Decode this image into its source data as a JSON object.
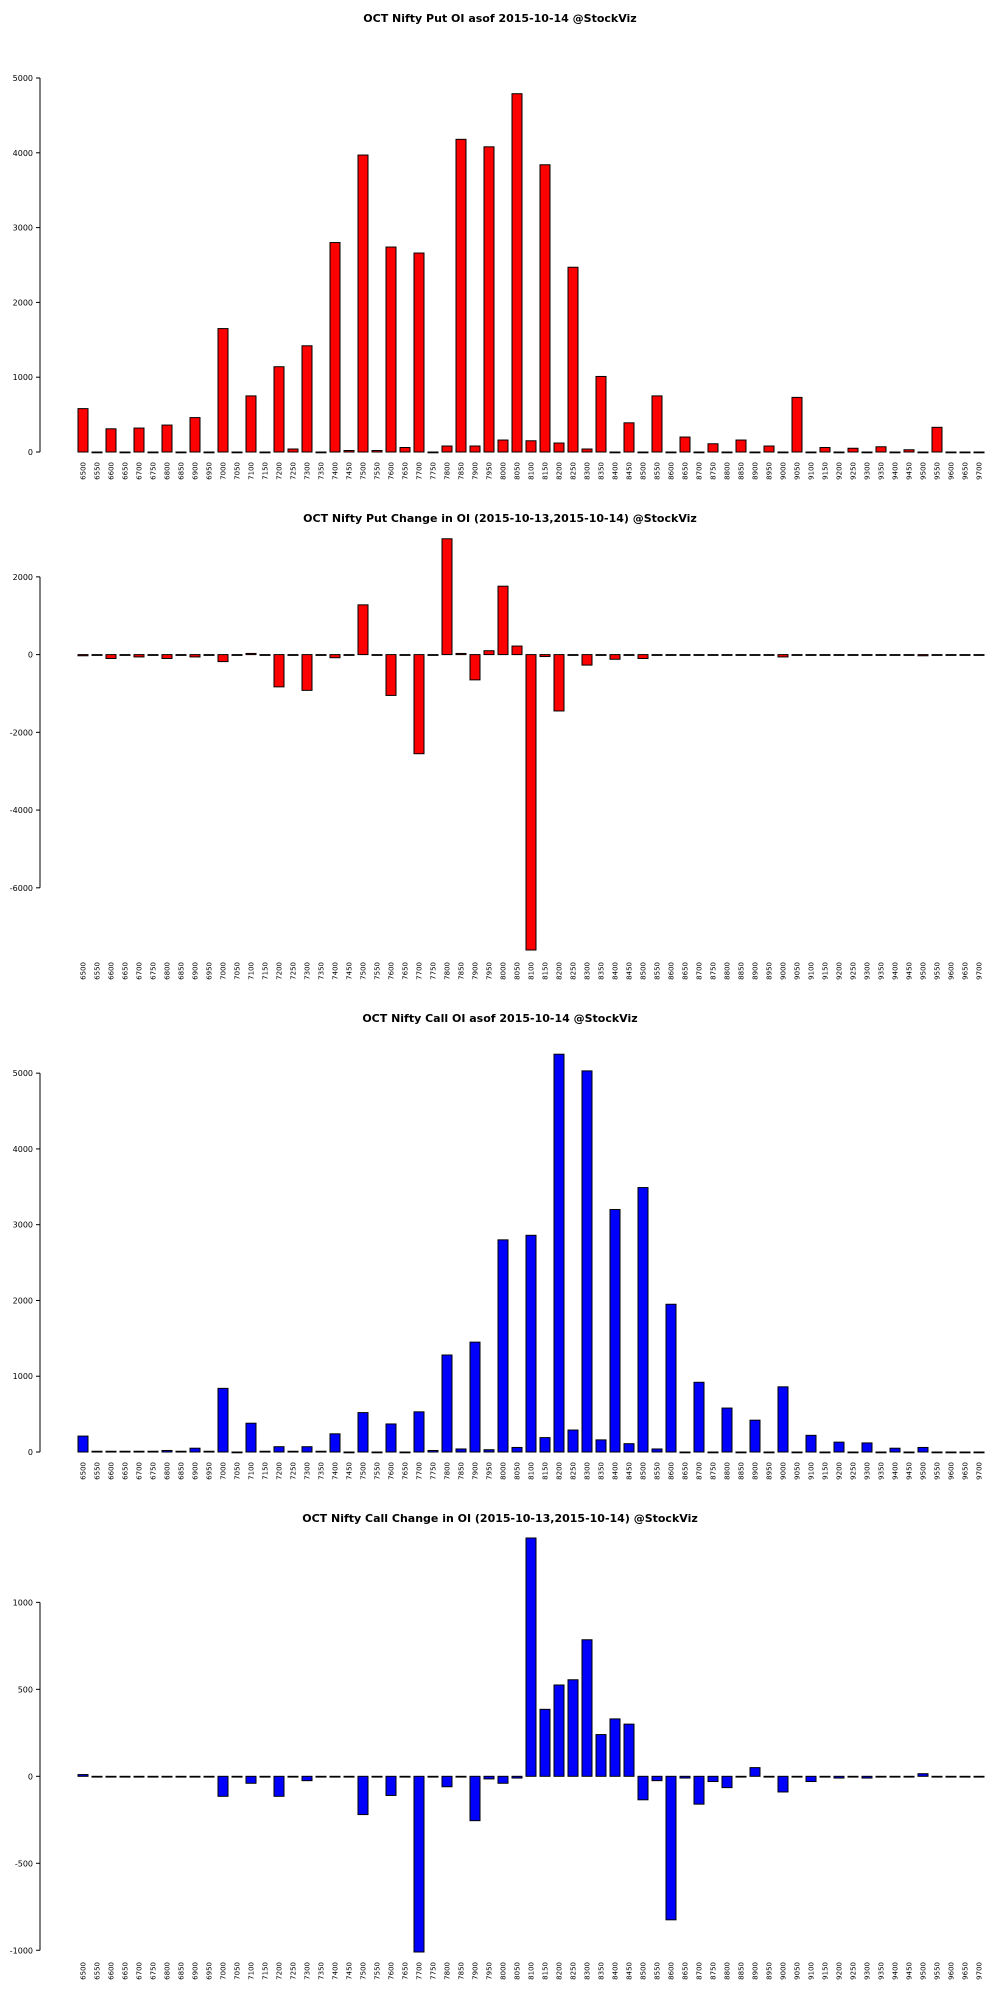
{
  "chart_data": [
    {
      "type": "bar",
      "title": "OCT Nifty Put OI asof 2015-10-14 @StockViz",
      "xlabel": "",
      "ylabel": "",
      "ylim": [
        0,
        5000
      ],
      "yticks": [
        0,
        1000,
        2000,
        3000,
        4000,
        5000
      ],
      "color": "#ff0000",
      "categories": [
        "6500",
        "6550",
        "6600",
        "6650",
        "6700",
        "6750",
        "6800",
        "6850",
        "6900",
        "6950",
        "7000",
        "7050",
        "7100",
        "7150",
        "7200",
        "7250",
        "7300",
        "7350",
        "7400",
        "7450",
        "7500",
        "7550",
        "7600",
        "7650",
        "7700",
        "7750",
        "7800",
        "7850",
        "7900",
        "7950",
        "8000",
        "8050",
        "8100",
        "8150",
        "8200",
        "8250",
        "8300",
        "8350",
        "8400",
        "8450",
        "8500",
        "8550",
        "8600",
        "8650",
        "8700",
        "8750",
        "8800",
        "8850",
        "8900",
        "8950",
        "9000",
        "9050",
        "9100",
        "9150",
        "9200",
        "9250",
        "9300",
        "9350",
        "9400",
        "9450",
        "9500",
        "9550",
        "9600",
        "9650",
        "9700"
      ],
      "values": [
        580,
        0,
        310,
        0,
        320,
        0,
        360,
        0,
        460,
        0,
        1650,
        0,
        750,
        0,
        1140,
        40,
        1420,
        0,
        2800,
        20,
        3970,
        20,
        2740,
        60,
        2660,
        0,
        80,
        4180,
        80,
        4080,
        160,
        4790,
        150,
        3840,
        120,
        2470,
        40,
        1010,
        0,
        390,
        0,
        750,
        0,
        200,
        0,
        110,
        0,
        160,
        0,
        80,
        0,
        730,
        0,
        60,
        0,
        50,
        0,
        70,
        0,
        30,
        0,
        330,
        0,
        0,
        0
      ]
    },
    {
      "type": "bar",
      "title": "OCT Nifty Put Change in OI (2015-10-13,2015-10-14) @StockViz",
      "xlabel": "",
      "ylabel": "",
      "ylim": [
        -7600,
        3000
      ],
      "yticks": [
        -6000,
        -4000,
        -2000,
        0,
        2000
      ],
      "color": "#ff0000",
      "categories": [
        "6500",
        "6550",
        "6600",
        "6650",
        "6700",
        "6750",
        "6800",
        "6850",
        "6900",
        "6950",
        "7000",
        "7050",
        "7100",
        "7150",
        "7200",
        "7250",
        "7300",
        "7350",
        "7400",
        "7450",
        "7500",
        "7550",
        "7600",
        "7650",
        "7700",
        "7750",
        "7800",
        "7850",
        "7900",
        "7950",
        "8000",
        "8050",
        "8100",
        "8150",
        "8200",
        "8250",
        "8300",
        "8350",
        "8400",
        "8450",
        "8500",
        "8550",
        "8600",
        "8650",
        "8700",
        "8750",
        "8800",
        "8850",
        "8900",
        "8950",
        "9000",
        "9050",
        "9100",
        "9150",
        "9200",
        "9250",
        "9300",
        "9350",
        "9400",
        "9450",
        "9500",
        "9550",
        "9600",
        "9650",
        "9700"
      ],
      "values": [
        -30,
        0,
        -100,
        0,
        -60,
        0,
        -100,
        0,
        -60,
        0,
        -180,
        0,
        30,
        0,
        -830,
        0,
        -920,
        0,
        -80,
        0,
        1280,
        0,
        -1050,
        0,
        -2550,
        0,
        2980,
        30,
        -650,
        100,
        1760,
        220,
        -7600,
        -50,
        -1450,
        0,
        -270,
        0,
        -120,
        0,
        -100,
        -20,
        0,
        0,
        0,
        0,
        0,
        0,
        0,
        0,
        -60,
        0,
        0,
        0,
        0,
        0,
        0,
        0,
        0,
        0,
        -30,
        0,
        0,
        0,
        0
      ]
    },
    {
      "type": "bar",
      "title": "OCT Nifty Call OI asof 2015-10-14 @StockViz",
      "xlabel": "",
      "ylabel": "",
      "ylim": [
        0,
        5200
      ],
      "yticks": [
        0,
        1000,
        2000,
        3000,
        4000,
        5000
      ],
      "color": "#0000ff",
      "categories": [
        "6500",
        "6550",
        "6600",
        "6650",
        "6700",
        "6750",
        "6800",
        "6850",
        "6900",
        "6950",
        "7000",
        "7050",
        "7100",
        "7150",
        "7200",
        "7250",
        "7300",
        "7350",
        "7400",
        "7450",
        "7500",
        "7550",
        "7600",
        "7650",
        "7700",
        "7750",
        "7800",
        "7850",
        "7900",
        "7950",
        "8000",
        "8050",
        "8100",
        "8150",
        "8200",
        "8250",
        "8300",
        "8350",
        "8400",
        "8450",
        "8500",
        "8550",
        "8600",
        "8650",
        "8700",
        "8750",
        "8800",
        "8850",
        "8900",
        "8950",
        "9000",
        "9050",
        "9100",
        "9150",
        "9200",
        "9250",
        "9300",
        "9350",
        "9400",
        "9450",
        "9500",
        "9550",
        "9600",
        "9650",
        "9700"
      ],
      "values": [
        210,
        10,
        10,
        10,
        10,
        10,
        20,
        10,
        50,
        10,
        840,
        0,
        380,
        10,
        70,
        10,
        70,
        10,
        240,
        0,
        520,
        0,
        370,
        0,
        530,
        20,
        1280,
        40,
        1450,
        30,
        2800,
        60,
        2860,
        190,
        5250,
        290,
        5030,
        160,
        3200,
        110,
        3490,
        40,
        1950,
        0,
        920,
        0,
        580,
        0,
        420,
        0,
        860,
        0,
        220,
        0,
        130,
        0,
        120,
        0,
        50,
        0,
        60,
        0,
        0,
        0,
        0
      ]
    },
    {
      "type": "bar",
      "title": "OCT Nifty Call Change in OI (2015-10-13,2015-10-14) @StockViz",
      "xlabel": "",
      "ylabel": "",
      "ylim": [
        -1010,
        1370
      ],
      "yticks": [
        -1000,
        -500,
        0,
        500,
        1000
      ],
      "color": "#0000ff",
      "categories": [
        "6500",
        "6550",
        "6600",
        "6650",
        "6700",
        "6750",
        "6800",
        "6850",
        "6900",
        "6950",
        "7000",
        "7050",
        "7100",
        "7150",
        "7200",
        "7250",
        "7300",
        "7350",
        "7400",
        "7450",
        "7500",
        "7550",
        "7600",
        "7650",
        "7700",
        "7750",
        "7800",
        "7850",
        "7900",
        "7950",
        "8000",
        "8050",
        "8100",
        "8150",
        "8200",
        "8250",
        "8300",
        "8350",
        "8400",
        "8450",
        "8500",
        "8550",
        "8600",
        "8650",
        "8700",
        "8750",
        "8800",
        "8850",
        "8900",
        "8950",
        "9000",
        "9050",
        "9100",
        "9150",
        "9200",
        "9250",
        "9300",
        "9350",
        "9400",
        "9450",
        "9500",
        "9550",
        "9600",
        "9650",
        "9700"
      ],
      "values": [
        10,
        0,
        0,
        0,
        0,
        0,
        0,
        0,
        0,
        0,
        -115,
        0,
        -40,
        0,
        -115,
        0,
        -25,
        0,
        0,
        0,
        -220,
        0,
        -110,
        0,
        -1010,
        0,
        -60,
        0,
        -255,
        -15,
        -40,
        -10,
        1370,
        385,
        525,
        555,
        785,
        240,
        330,
        300,
        -135,
        -25,
        -825,
        -10,
        -160,
        -30,
        -65,
        0,
        50,
        0,
        -90,
        0,
        -30,
        0,
        -10,
        0,
        -10,
        0,
        0,
        0,
        15,
        0,
        0,
        0,
        0
      ]
    }
  ]
}
